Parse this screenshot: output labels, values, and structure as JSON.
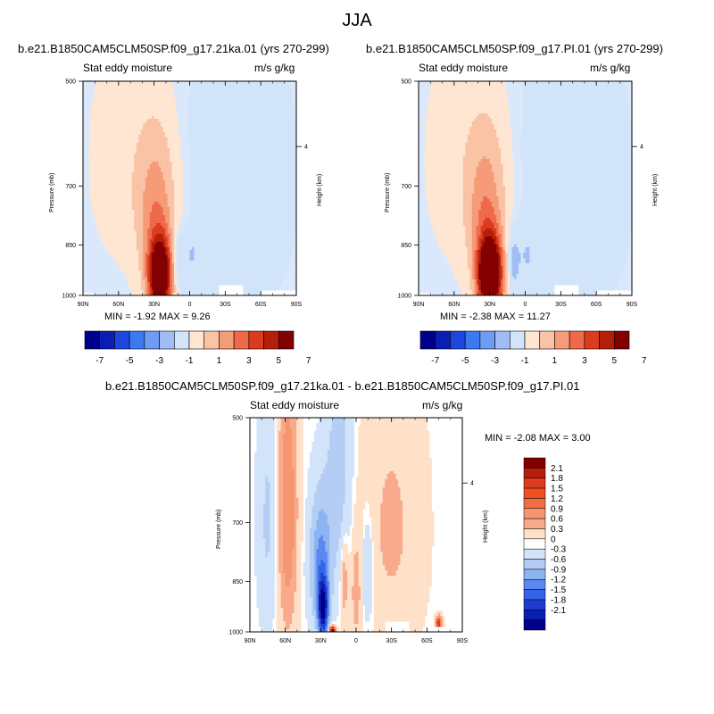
{
  "figure": {
    "title": "JJA",
    "panel_left_title": "b.e21.B1850CAM5CLM50SP.f09_g17.21ka.01 (yrs 270-299)",
    "panel_right_title": "b.e21.B1850CAM5CLM50SP.f09_g17.PI.01 (yrs 270-299)",
    "panel_bottom_title": "b.e21.B1850CAM5CLM50SP.f09_g17.21ka.01 - b.e21.B1850CAM5CLM50SP.f09_g17.PI.01",
    "left_label": "Stat eddy moisture",
    "right_label": "m/s g/kg",
    "left_axis_label": "Pressure (mb)",
    "right_axis_label": "Height (km)",
    "panel_left_minmax": "MIN =  -1.92   MAX =   9.26",
    "panel_right_minmax": "MIN =  -2.38   MAX =  11.27",
    "panel_bottom_minmax": "MIN =  -2.08   MAX =    3.00"
  },
  "chart_data": [
    {
      "type": "heatmap",
      "title": "b.e21.B1850CAM5CLM50SP.f09_g17.21ka.01 (yrs 270-299)",
      "field": "Stat eddy moisture",
      "units": "m/s g/kg",
      "x_ticks": [
        "90N",
        "60N",
        "30N",
        "0",
        "30S",
        "60S",
        "90S"
      ],
      "y_ticks": [
        "500",
        "700",
        "850",
        "1000"
      ],
      "ylabel": "Pressure (mb)",
      "y2label": "Height (km)",
      "y2_ticks": [
        "4"
      ],
      "min": -1.92,
      "max": 9.26,
      "colorbar_labels": [
        "-7",
        "-5",
        "-3",
        "-1",
        "1",
        "3",
        "5",
        "7"
      ],
      "features": [
        {
          "kind": "positive maximum",
          "lat": 25,
          "p": 930,
          "value": 9.26
        },
        {
          "kind": "negative minimum",
          "lat": 12,
          "p": 880,
          "value": -1.92
        }
      ]
    },
    {
      "type": "heatmap",
      "title": "b.e21.B1850CAM5CLM50SP.f09_g17.PI.01 (yrs 270-299)",
      "field": "Stat eddy moisture",
      "units": "m/s g/kg",
      "x_ticks": [
        "90N",
        "60N",
        "30N",
        "0",
        "30S",
        "60S",
        "90S"
      ],
      "y_ticks": [
        "500",
        "700",
        "850",
        "1000"
      ],
      "ylabel": "Pressure (mb)",
      "y2label": "Height (km)",
      "y2_ticks": [
        "4"
      ],
      "min": -2.38,
      "max": 11.27,
      "colorbar_labels": [
        "-7",
        "-5",
        "-3",
        "-1",
        "1",
        "3",
        "5",
        "7"
      ],
      "features": [
        {
          "kind": "positive maximum",
          "lat": 30,
          "p": 910,
          "value": 11.27
        },
        {
          "kind": "negative minimum",
          "lat": 10,
          "p": 940,
          "value": -2.38
        }
      ]
    },
    {
      "type": "heatmap",
      "title": "b.e21.B1850CAM5CLM50SP.f09_g17.21ka.01 - b.e21.B1850CAM5CLM50SP.f09_g17.PI.01",
      "field": "Stat eddy moisture",
      "units": "m/s g/kg",
      "x_ticks": [
        "90N",
        "60N",
        "30N",
        "0",
        "30S",
        "60S",
        "90S"
      ],
      "y_ticks": [
        "500",
        "700",
        "850",
        "1000"
      ],
      "ylabel": "Pressure (mb)",
      "y2label": "Height (km)",
      "y2_ticks": [
        "4"
      ],
      "min": -2.08,
      "max": 3.0,
      "colorbar_labels": [
        "2.1",
        "1.8",
        "1.5",
        "1.2",
        "0.9",
        "0.6",
        "0.3",
        "0",
        "-0.3",
        "-0.6",
        "-0.9",
        "-1.2",
        "-1.5",
        "-1.8",
        "-2.1"
      ],
      "features": [
        {
          "kind": "negative minimum",
          "lat": 30,
          "p": 920,
          "value": -2.08
        },
        {
          "kind": "positive maximum",
          "lat": 20,
          "p": 995,
          "value": 3.0
        }
      ]
    }
  ],
  "colors": {
    "top_scale": [
      "#00008b",
      "#0a1eb4",
      "#1e46dc",
      "#3c78f0",
      "#6e9bf5",
      "#a0bef5",
      "#d2e4fa",
      "#ffe6d2",
      "#fac3a5",
      "#f59b78",
      "#f0694b",
      "#dc3c1e",
      "#b41e0a",
      "#820000"
    ],
    "diff_scale": [
      "#820000",
      "#b41e0a",
      "#dc3c1e",
      "#f0501e",
      "#f06e46",
      "#f5966e",
      "#faaa8c",
      "#ffe0c8",
      "#ffffff",
      "#d2e4fa",
      "#b4cdf5",
      "#8cb4f0",
      "#5a87f0",
      "#3264e6",
      "#1e3ccd",
      "#0a1eb4",
      "#00008b"
    ]
  }
}
